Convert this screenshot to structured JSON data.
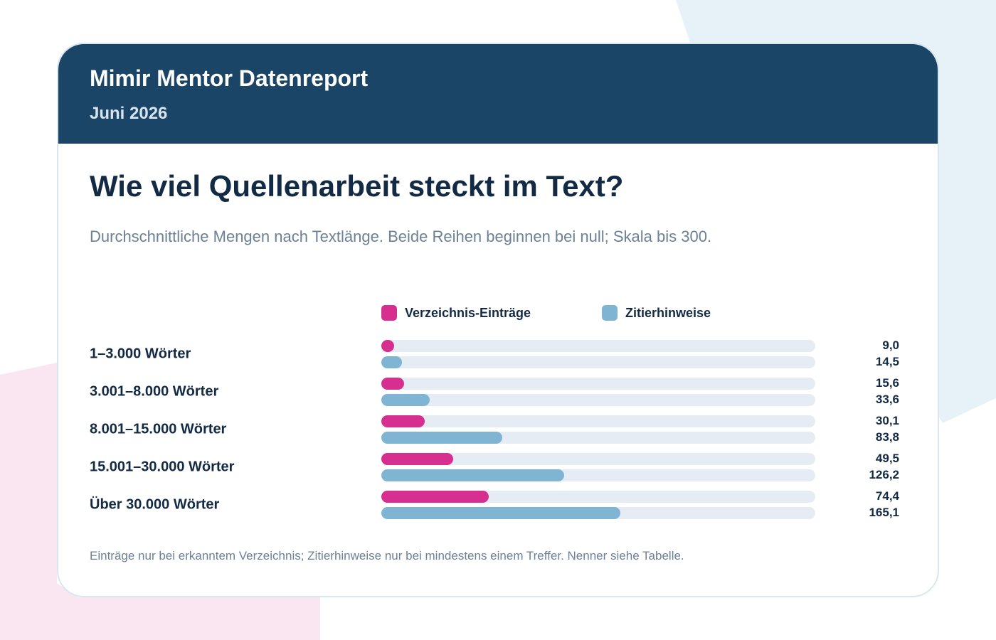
{
  "colors": {
    "header_bg": "#1b4566",
    "series_entries": "#d62f8f",
    "series_hints": "#7fb5d3",
    "track": "#e5ecf4"
  },
  "report": {
    "brand": "Mimir Mentor Datenreport",
    "period": "Juni 2026"
  },
  "chart_data": {
    "type": "bar",
    "orientation": "horizontal",
    "title": "Wie viel Quellenarbeit steckt im Text?",
    "subtitle": "Durchschnittliche Mengen nach Textlänge. Beide Reihen beginnen bei null; Skala bis 300.",
    "categories": [
      "1–3.000 Wörter",
      "3.001–8.000 Wörter",
      "8.001–15.000 Wörter",
      "15.001–30.000 Wörter",
      "Über 30.000 Wörter"
    ],
    "series": [
      {
        "name": "Verzeichnis-Einträge",
        "color": "#d62f8f",
        "values": [
          9.0,
          15.6,
          30.1,
          49.5,
          74.4
        ],
        "labels": [
          "9,0",
          "15,6",
          "30,1",
          "49,5",
          "74,4"
        ]
      },
      {
        "name": "Zitierhinweise",
        "color": "#7fb5d3",
        "values": [
          14.5,
          33.6,
          83.8,
          126.2,
          165.1
        ],
        "labels": [
          "14,5",
          "33,6",
          "83,8",
          "126,2",
          "165,1"
        ]
      }
    ],
    "xlim": [
      0,
      300
    ],
    "legend": "top",
    "grid": false,
    "footnote": "Einträge nur bei erkanntem Verzeichnis; Zitierhinweise nur bei mindestens einem Treffer. Nenner siehe Tabelle."
  }
}
